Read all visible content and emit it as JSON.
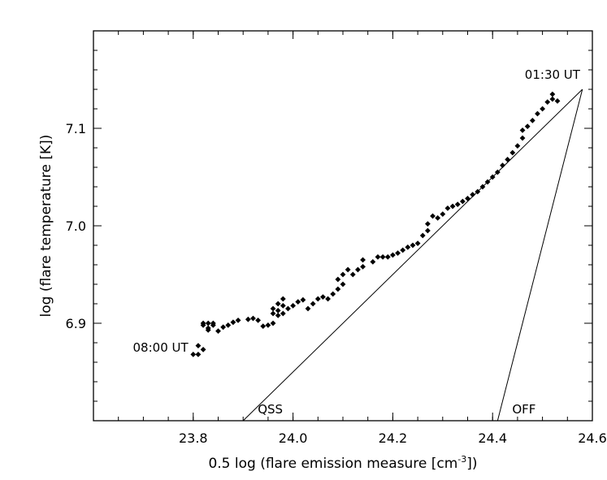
{
  "chart_data": {
    "type": "scatter",
    "xlabel": "0.5 log (flare emission measure [cm",
    "xlabel_sup": "-3",
    "xlabel_tail": "])",
    "ylabel": "log (flare temperature [K])",
    "xlim": [
      23.6,
      24.6
    ],
    "ylim": [
      6.8,
      7.2
    ],
    "x_ticks": [
      23.8,
      24.0,
      24.2,
      24.4,
      24.6
    ],
    "x_tick_labels": [
      "23.8",
      "24.0",
      "24.2",
      "24.4",
      "24.6"
    ],
    "y_ticks": [
      6.9,
      7.0,
      7.1
    ],
    "y_tick_labels": [
      "6.9",
      "7.0",
      "7.1"
    ],
    "x_minor_step": 0.05,
    "y_minor_step": 0.02,
    "grid": false,
    "marker": "diamond",
    "marker_color": "#000000",
    "series": [
      {
        "points": [
          [
            23.8,
            6.868
          ],
          [
            23.81,
            6.868
          ],
          [
            23.81,
            6.877
          ],
          [
            23.82,
            6.873
          ],
          [
            23.82,
            6.898
          ],
          [
            23.82,
            6.9
          ],
          [
            23.83,
            6.893
          ],
          [
            23.83,
            6.9
          ],
          [
            23.83,
            6.895
          ],
          [
            23.84,
            6.898
          ],
          [
            23.84,
            6.9
          ],
          [
            23.85,
            6.892
          ],
          [
            23.86,
            6.896
          ],
          [
            23.87,
            6.898
          ],
          [
            23.88,
            6.901
          ],
          [
            23.89,
            6.903
          ],
          [
            23.91,
            6.904
          ],
          [
            23.92,
            6.905
          ],
          [
            23.93,
            6.903
          ],
          [
            23.94,
            6.897
          ],
          [
            23.95,
            6.898
          ],
          [
            23.96,
            6.9
          ],
          [
            23.96,
            6.91
          ],
          [
            23.96,
            6.915
          ],
          [
            23.97,
            6.913
          ],
          [
            23.97,
            6.92
          ],
          [
            23.97,
            6.908
          ],
          [
            23.98,
            6.91
          ],
          [
            23.98,
            6.918
          ],
          [
            23.98,
            6.925
          ],
          [
            23.99,
            6.915
          ],
          [
            24.0,
            6.918
          ],
          [
            24.01,
            6.922
          ],
          [
            24.02,
            6.924
          ],
          [
            24.03,
            6.915
          ],
          [
            24.04,
            6.92
          ],
          [
            24.05,
            6.925
          ],
          [
            24.06,
            6.927
          ],
          [
            24.07,
            6.925
          ],
          [
            24.08,
            6.93
          ],
          [
            24.09,
            6.935
          ],
          [
            24.09,
            6.945
          ],
          [
            24.1,
            6.95
          ],
          [
            24.1,
            6.94
          ],
          [
            24.11,
            6.955
          ],
          [
            24.12,
            6.95
          ],
          [
            24.13,
            6.955
          ],
          [
            24.14,
            6.958
          ],
          [
            24.14,
            6.965
          ],
          [
            24.16,
            6.963
          ],
          [
            24.17,
            6.968
          ],
          [
            24.18,
            6.968
          ],
          [
            24.19,
            6.968
          ],
          [
            24.2,
            6.97
          ],
          [
            24.21,
            6.972
          ],
          [
            24.22,
            6.975
          ],
          [
            24.23,
            6.978
          ],
          [
            24.24,
            6.98
          ],
          [
            24.25,
            6.982
          ],
          [
            24.26,
            6.99
          ],
          [
            24.27,
            6.995
          ],
          [
            24.27,
            7.002
          ],
          [
            24.28,
            7.01
          ],
          [
            24.29,
            7.008
          ],
          [
            24.3,
            7.012
          ],
          [
            24.31,
            7.018
          ],
          [
            24.32,
            7.02
          ],
          [
            24.33,
            7.022
          ],
          [
            24.34,
            7.025
          ],
          [
            24.35,
            7.028
          ],
          [
            24.36,
            7.032
          ],
          [
            24.37,
            7.035
          ],
          [
            24.38,
            7.04
          ],
          [
            24.39,
            7.045
          ],
          [
            24.4,
            7.05
          ],
          [
            24.41,
            7.055
          ],
          [
            24.42,
            7.062
          ],
          [
            24.43,
            7.068
          ],
          [
            24.44,
            7.075
          ],
          [
            24.45,
            7.082
          ],
          [
            24.46,
            7.09
          ],
          [
            24.46,
            7.098
          ],
          [
            24.47,
            7.102
          ],
          [
            24.48,
            7.108
          ],
          [
            24.49,
            7.115
          ],
          [
            24.5,
            7.12
          ],
          [
            24.51,
            7.127
          ],
          [
            24.52,
            7.13
          ],
          [
            24.53,
            7.128
          ],
          [
            24.52,
            7.135
          ]
        ]
      }
    ],
    "lines": [
      {
        "label": "QSS",
        "points": [
          [
            23.9,
            6.8
          ],
          [
            24.58,
            7.14
          ]
        ]
      },
      {
        "label": "OFF",
        "points": [
          [
            24.41,
            6.8
          ],
          [
            24.58,
            7.14
          ]
        ]
      }
    ],
    "annotations": [
      {
        "text": "01:30 UT",
        "x": 24.52,
        "y": 7.155
      },
      {
        "text": "08:00 UT",
        "x": 23.79,
        "y": 6.875
      }
    ]
  }
}
